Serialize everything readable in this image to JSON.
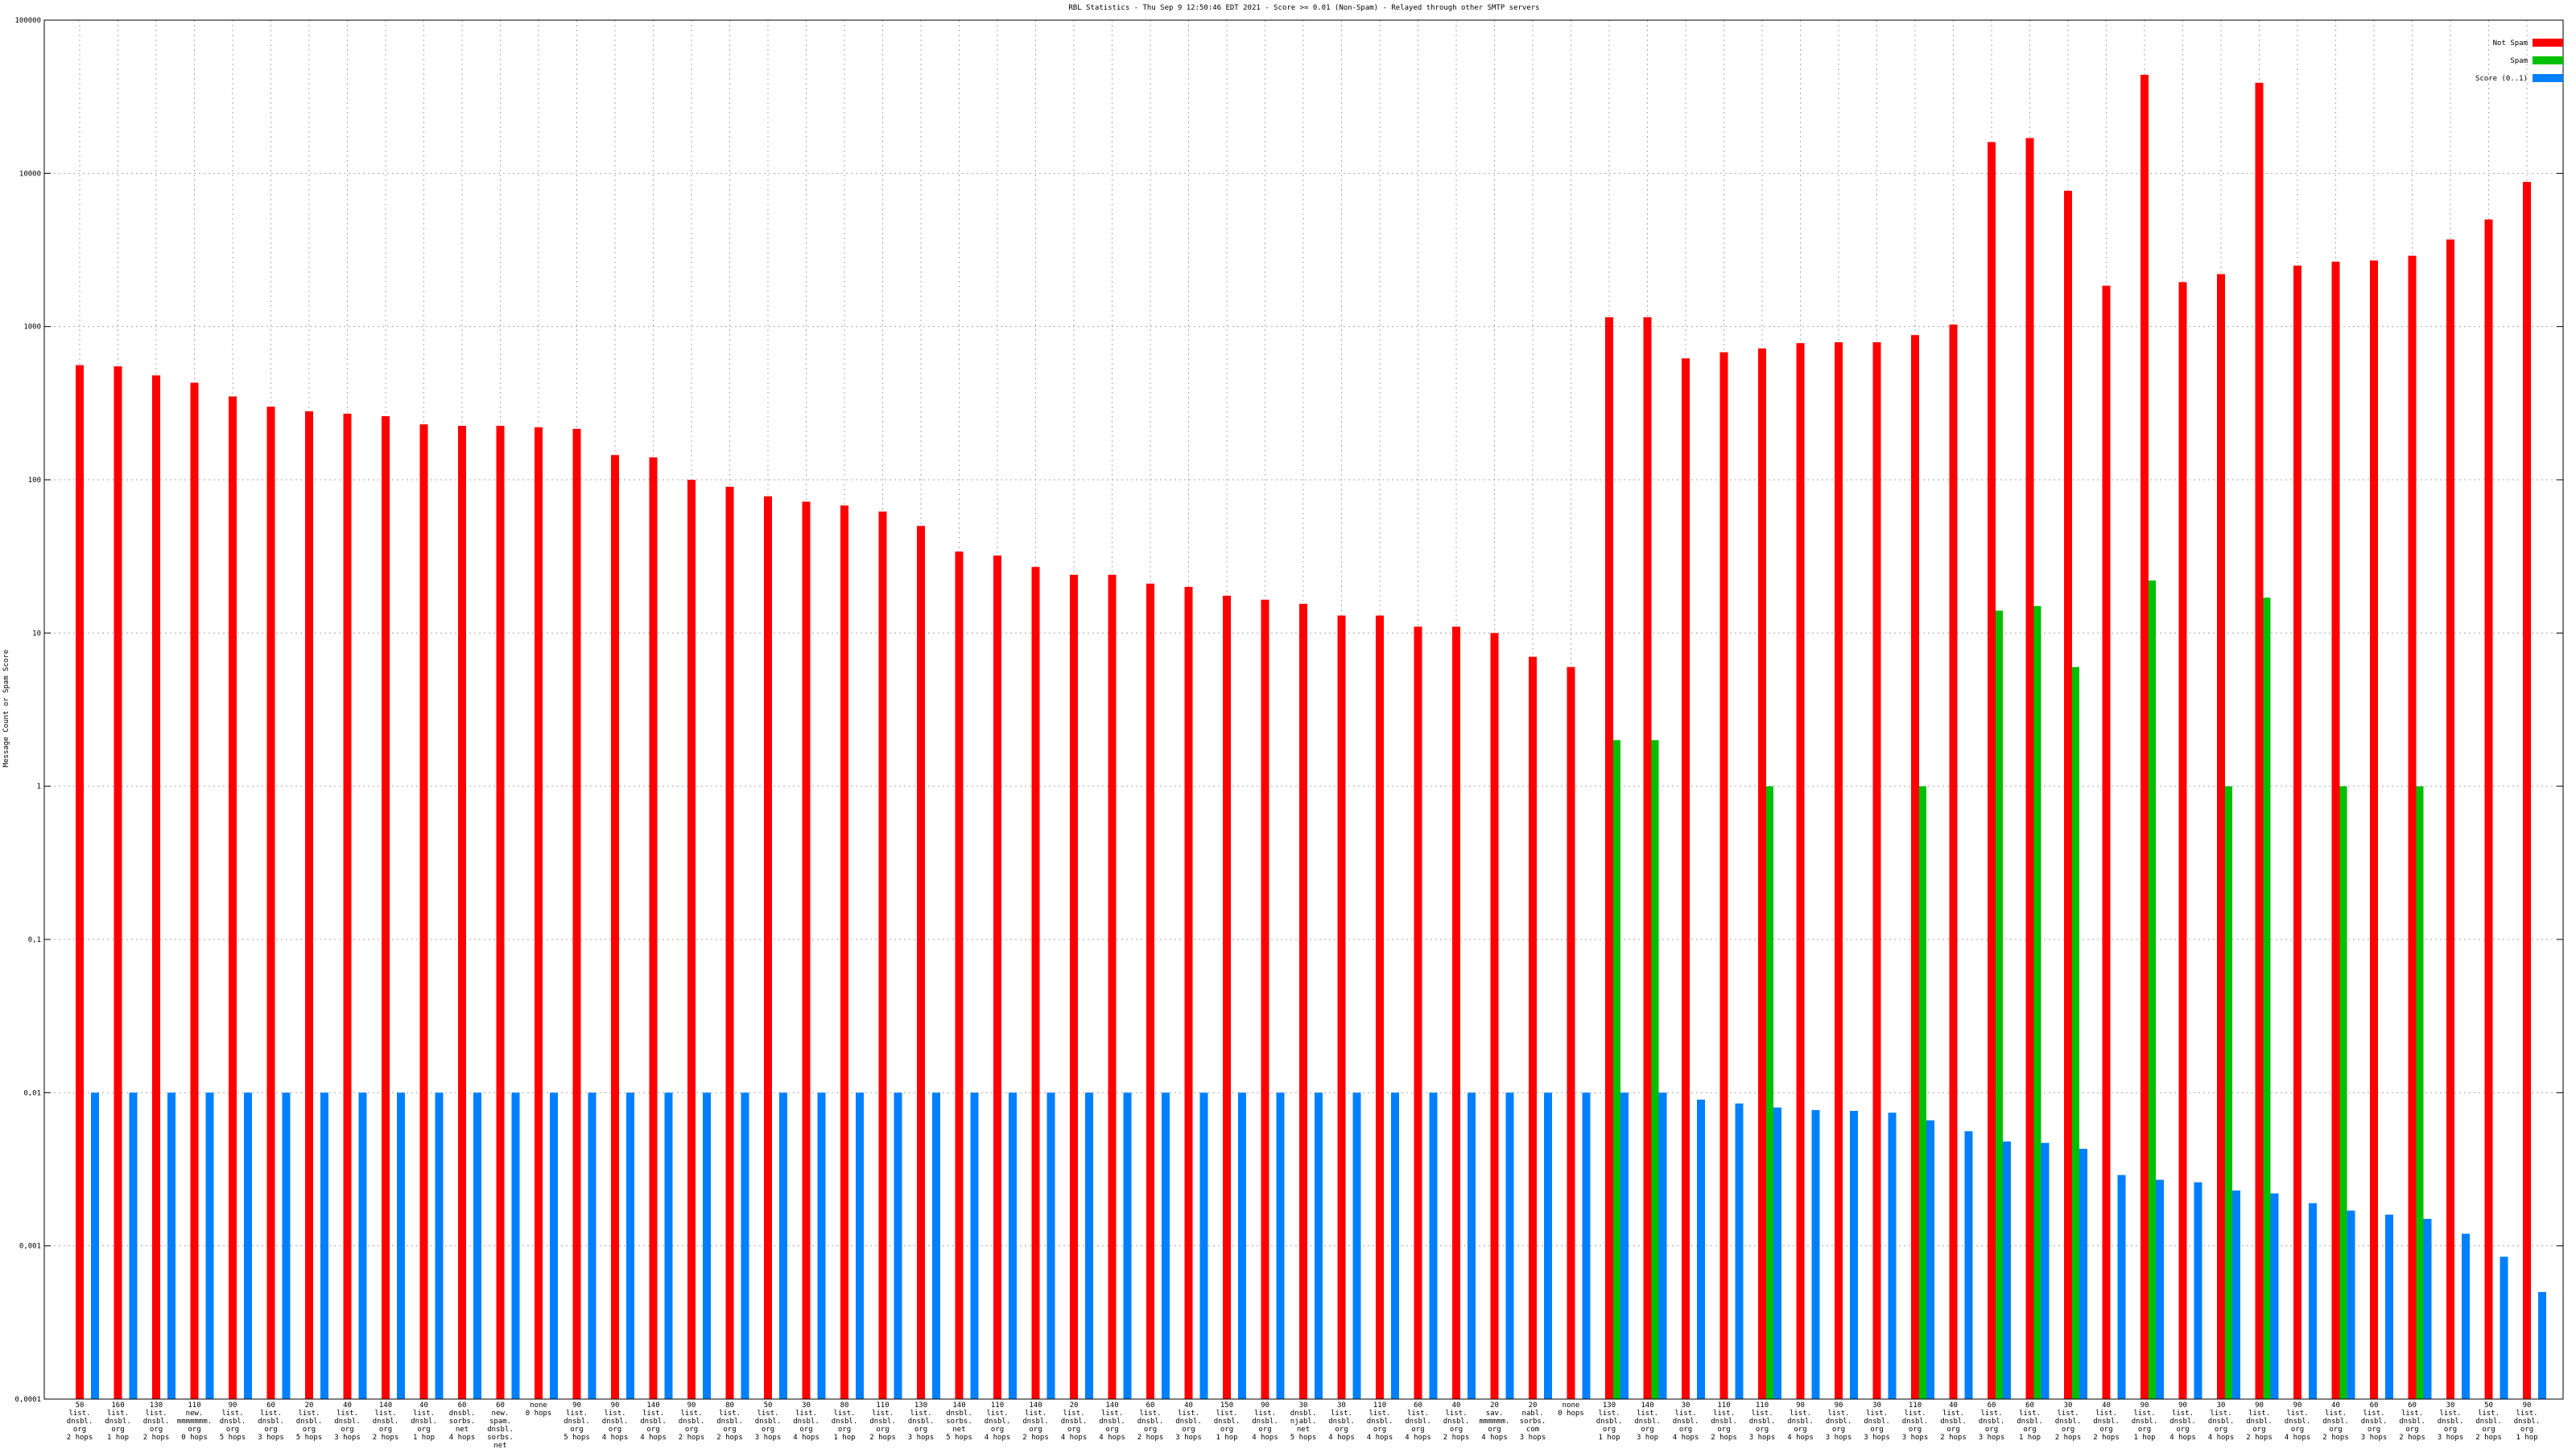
{
  "chart_data": {
    "type": "bar",
    "title": "RBL Statistics - Thu Sep  9 12:50:46 EDT 2021 - Score >= 0.01 (Non-Spam) - Relayed through other SMTP servers",
    "y_label": "Message Count or Spam Score",
    "log_scale": true,
    "grid": true,
    "legend": "top-right",
    "ylim": [
      0.0001,
      100000
    ],
    "yticks": [
      {
        "value": 0.0001,
        "label": "0,0001"
      },
      {
        "value": 0.001,
        "label": "0,001"
      },
      {
        "value": 0.01,
        "label": "0,01"
      },
      {
        "value": 0.1,
        "label": "0,1"
      },
      1,
      10,
      100,
      1000,
      10000,
      100000
    ],
    "categories": [
      [
        "50",
        "list.",
        "dnsbl.",
        "org",
        "2 hops"
      ],
      [
        "160",
        "list.",
        "dnsbl.",
        "org",
        "1 hop"
      ],
      [
        "130",
        "list.",
        "dnsbl.",
        "org",
        "2 hops"
      ],
      [
        "110",
        "new.",
        "mmmmmmm.",
        "org",
        "0 hops"
      ],
      [
        "90",
        "list.",
        "dnsbl.",
        "org",
        "5 hops"
      ],
      [
        "60",
        "list.",
        "dnsbl.",
        "org",
        "3 hops"
      ],
      [
        "20",
        "list.",
        "dnsbl.",
        "org",
        "5 hops"
      ],
      [
        "40",
        "list.",
        "dnsbl.",
        "org",
        "3 hops"
      ],
      [
        "140",
        "list.",
        "dnsbl.",
        "org",
        "2 hops"
      ],
      [
        "40",
        "list.",
        "dnsbl.",
        "org",
        "1 hop"
      ],
      [
        "60",
        "dnsbl.",
        "sorbs.",
        "net",
        "4 hops"
      ],
      [
        "60",
        "new.",
        "spam.",
        "dnsbl.",
        "sorbs.",
        "net",
        "4 hops"
      ],
      [
        "none",
        "0 hops"
      ],
      [
        "90",
        "list.",
        "dnsbl.",
        "org",
        "5 hops"
      ],
      [
        "90",
        "list.",
        "dnsbl.",
        "org",
        "4 hops"
      ],
      [
        "140",
        "list.",
        "dnsbl.",
        "org",
        "4 hops"
      ],
      [
        "90",
        "list.",
        "dnsbl.",
        "org",
        "2 hops"
      ],
      [
        "80",
        "list.",
        "dnsbl.",
        "org",
        "2 hops"
      ],
      [
        "50",
        "list.",
        "dnsbl.",
        "org",
        "3 hops"
      ],
      [
        "30",
        "list.",
        "dnsbl.",
        "org",
        "4 hops"
      ],
      [
        "80",
        "list.",
        "dnsbl.",
        "org",
        "1 hop"
      ],
      [
        "110",
        "list.",
        "dnsbl.",
        "org",
        "2 hops"
      ],
      [
        "130",
        "list.",
        "dnsbl.",
        "org",
        "3 hops"
      ],
      [
        "140",
        "dnsbl.",
        "sorbs.",
        "net",
        "5 hops"
      ],
      [
        "110",
        "list.",
        "dnsbl.",
        "org",
        "4 hops"
      ],
      [
        "140",
        "list.",
        "dnsbl.",
        "org",
        "2 hops"
      ],
      [
        "20",
        "list.",
        "dnsbl.",
        "org",
        "4 hops"
      ],
      [
        "140",
        "list.",
        "dnsbl.",
        "org",
        "4 hops"
      ],
      [
        "60",
        "list.",
        "dnsbl.",
        "org",
        "2 hops"
      ],
      [
        "40",
        "list.",
        "dnsbl.",
        "org",
        "3 hops"
      ],
      [
        "150",
        "list.",
        "dnsbl.",
        "org",
        "1 hop"
      ],
      [
        "90",
        "list.",
        "dnsbl.",
        "org",
        "4 hops"
      ],
      [
        "30",
        "dnsbl.",
        "njabl.",
        "net",
        "5 hops"
      ],
      [
        "30",
        "list.",
        "dnsbl.",
        "org",
        "4 hops"
      ],
      [
        "110",
        "list.",
        "dnsbl.",
        "org",
        "4 hops"
      ],
      [
        "60",
        "list.",
        "dnsbl.",
        "org",
        "4 hops"
      ],
      [
        "40",
        "list.",
        "dnsbl.",
        "org",
        "2 hops"
      ],
      [
        "20",
        "sav.",
        "mmmmmm.",
        "org",
        "4 hops"
      ],
      [
        "20",
        "nabl.",
        "sorbs.",
        "com",
        "3 hops"
      ],
      [
        "none",
        "0 hops"
      ],
      [
        "130",
        "list.",
        "dnsbl.",
        "org",
        "1 hop"
      ],
      [
        "140",
        "list.",
        "dnsbl.",
        "org",
        "3 hop"
      ],
      [
        "30",
        "list.",
        "dnsbl.",
        "org",
        "4 hops"
      ],
      [
        "110",
        "list.",
        "dnsbl.",
        "org",
        "2 hops"
      ],
      [
        "110",
        "list.",
        "dnsbl.",
        "org",
        "3 hops"
      ],
      [
        "90",
        "list.",
        "dnsbl.",
        "org",
        "4 hops"
      ],
      [
        "90",
        "list.",
        "dnsbl.",
        "org",
        "3 hops"
      ],
      [
        "30",
        "list.",
        "dnsbl.",
        "org",
        "3 hops"
      ],
      [
        "110",
        "list.",
        "dnsbl.",
        "org",
        "3 hops"
      ],
      [
        "40",
        "list.",
        "dnsbl.",
        "org",
        "2 hops"
      ],
      [
        "60",
        "list.",
        "dnsbl.",
        "org",
        "3 hops"
      ],
      [
        "60",
        "list.",
        "dnsbl.",
        "org",
        "1 hop"
      ],
      [
        "30",
        "list.",
        "dnsbl.",
        "org",
        "2 hops"
      ],
      [
        "40",
        "list.",
        "dnsbl.",
        "org",
        "2 hops"
      ],
      [
        "90",
        "list.",
        "dnsbl.",
        "org",
        "1 hop"
      ],
      [
        "90",
        "list.",
        "dnsbl.",
        "org",
        "4 hops"
      ],
      [
        "30",
        "list.",
        "dnsbl.",
        "org",
        "4 hops"
      ],
      [
        "90",
        "list.",
        "dnsbl.",
        "org",
        "2 hops"
      ],
      [
        "90",
        "list.",
        "dnsbl.",
        "org",
        "4 hops"
      ],
      [
        "40",
        "list.",
        "dnsbl.",
        "org",
        "2 hops"
      ],
      [
        "60",
        "list.",
        "dnsbl.",
        "org",
        "3 hops"
      ],
      [
        "60",
        "list.",
        "dnsbl.",
        "org",
        "2 hops"
      ],
      [
        "30",
        "list.",
        "dnsbl.",
        "org",
        "3 hops"
      ],
      [
        "50",
        "list.",
        "dnsbl.",
        "org",
        "2 hops"
      ],
      [
        "90",
        "list.",
        "dnsbl.",
        "org",
        "1 hop"
      ]
    ],
    "series": [
      {
        "name": "Not Spam",
        "color": "#ff0000",
        "values": [
          560,
          550,
          480,
          430,
          350,
          300,
          280,
          270,
          260,
          230,
          225,
          225,
          220,
          215,
          145,
          140,
          100,
          90,
          78,
          72,
          68,
          62,
          50,
          34,
          32,
          27,
          24,
          24,
          21,
          20,
          17.5,
          16.5,
          15.5,
          13,
          13,
          11,
          11,
          10,
          7,
          6,
          1150,
          1150,
          620,
          680,
          720,
          780,
          790,
          790,
          880,
          1030,
          16000,
          17000,
          7700,
          1850,
          44000,
          1950,
          2200,
          39000,
          2500,
          2650,
          2700,
          2900,
          3700,
          5000,
          8800
        ]
      },
      {
        "name": "Spam",
        "color": "#00c000",
        "values": [
          null,
          null,
          null,
          null,
          null,
          null,
          null,
          null,
          null,
          null,
          null,
          null,
          null,
          null,
          null,
          null,
          null,
          null,
          null,
          null,
          null,
          null,
          null,
          null,
          null,
          null,
          null,
          null,
          null,
          null,
          null,
          null,
          null,
          null,
          null,
          null,
          null,
          null,
          null,
          null,
          2,
          2,
          null,
          null,
          1,
          null,
          null,
          null,
          1,
          null,
          14,
          15,
          6,
          null,
          22,
          null,
          1,
          17,
          null,
          1,
          null,
          1,
          null,
          null,
          null
        ]
      },
      {
        "name": "Score (0..1)",
        "color": "#0080ff",
        "values": [
          0.01,
          0.01,
          0.01,
          0.01,
          0.01,
          0.01,
          0.01,
          0.01,
          0.01,
          0.01,
          0.01,
          0.01,
          0.01,
          0.01,
          0.01,
          0.01,
          0.01,
          0.01,
          0.01,
          0.01,
          0.01,
          0.01,
          0.01,
          0.01,
          0.01,
          0.01,
          0.01,
          0.01,
          0.01,
          0.01,
          0.01,
          0.01,
          0.01,
          0.01,
          0.01,
          0.01,
          0.01,
          0.01,
          0.01,
          0.01,
          0.01,
          0.01,
          0.009,
          0.0085,
          0.008,
          0.0077,
          0.0076,
          0.0074,
          0.0066,
          0.0056,
          0.0048,
          0.0047,
          0.0043,
          0.0029,
          0.0027,
          0.0026,
          0.0023,
          0.0022,
          0.0019,
          0.0017,
          0.0016,
          0.0015,
          0.0012,
          0.00085,
          0.0005
        ]
      }
    ]
  }
}
